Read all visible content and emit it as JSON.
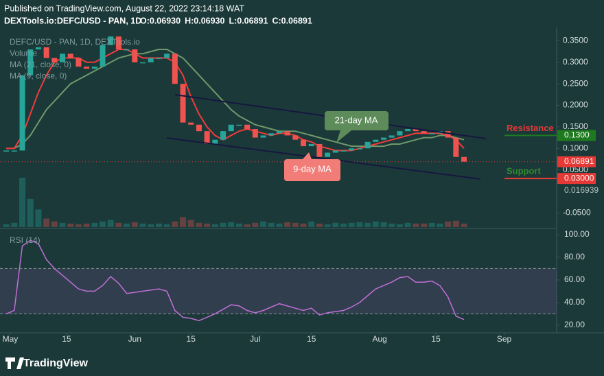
{
  "header": {
    "published": "Published on TradingView.com, August 22, 2022 23:14:18 WAT",
    "symbol": "DEXTools.io:DEFC/USD - PAN, 1D",
    "ohlc": [
      "O:0.06930",
      "H:0.06930",
      "L:0.06891",
      "C:0.06891"
    ]
  },
  "footer": {
    "brand": "TradingView"
  },
  "chart_data": [
    {
      "type": "candlestick",
      "x": [
        -1,
        1,
        3,
        5,
        7,
        9,
        11,
        13,
        15,
        17,
        19,
        21,
        23,
        25,
        27,
        29,
        31,
        33,
        35,
        37,
        39,
        41,
        43,
        45,
        47,
        49,
        51,
        53,
        55,
        57,
        59,
        61,
        63,
        65,
        67,
        69,
        71,
        73,
        75,
        77,
        79,
        81,
        83,
        85,
        87,
        89,
        91,
        93,
        95,
        97,
        99,
        101,
        103,
        105,
        107,
        109,
        111,
        113
      ],
      "xlim": [
        -2.56,
        135.9
      ],
      "ylim": [
        -0.083,
        0.389
      ],
      "yticks": [
        {
          "value": 0.35,
          "label": "0.3500"
        },
        {
          "value": 0.3,
          "label": "0.3000"
        },
        {
          "value": 0.25,
          "label": "0.2500"
        },
        {
          "value": 0.2,
          "label": "0.2000"
        },
        {
          "value": 0.15,
          "label": "0.1500"
        },
        {
          "value": 0.1,
          "label": "0.1000"
        },
        {
          "value": 0.05,
          "label": "0.0500"
        },
        {
          "value": -0.05,
          "label": "-0.0500"
        }
      ],
      "up_color": "#26a69a",
      "down_color": "#ef5350",
      "series": [
        {
          "name": "DEFC/USD - PAN, 1D, DEXTools.io",
          "values": [
            0.095,
            0.095,
            0.27,
            0.33,
            0.335,
            0.31,
            0.3,
            0.32,
            0.31,
            0.29,
            0.285,
            0.29,
            0.34,
            0.36,
            0.33,
            0.33,
            0.3,
            0.3,
            0.31,
            0.31,
            0.32,
            0.25,
            0.16,
            0.155,
            0.14,
            0.11,
            0.12,
            0.14,
            0.155,
            0.155,
            0.145,
            0.125,
            0.13,
            0.135,
            0.14,
            0.13,
            0.12,
            0.105,
            0.11,
            0.08,
            0.09,
            0.095,
            0.095,
            0.1,
            0.1,
            0.115,
            0.12,
            0.125,
            0.13,
            0.14,
            0.145,
            0.14,
            0.135,
            0.135,
            0.14,
            0.125,
            0.08,
            0.069
          ]
        },
        {
          "name": "Volume",
          "values": [
            4,
            6,
            70,
            40,
            25,
            12,
            8,
            6,
            5,
            4,
            5,
            6,
            8,
            10,
            6,
            5,
            7,
            5,
            4,
            5,
            4,
            8,
            14,
            10,
            6,
            5,
            4,
            6,
            7,
            5,
            4,
            6,
            8,
            6,
            5,
            7,
            6,
            5,
            8,
            5,
            4,
            6,
            5,
            6,
            7,
            6,
            8,
            7,
            5,
            4,
            6,
            5,
            5,
            6,
            5,
            8,
            9,
            5
          ]
        },
        {
          "name": "MA (21, close, 0)",
          "color": "#6f9a6b",
          "values": [
            0.1,
            0.1,
            0.11,
            0.13,
            0.16,
            0.19,
            0.21,
            0.23,
            0.25,
            0.26,
            0.27,
            0.28,
            0.29,
            0.3,
            0.31,
            0.315,
            0.32,
            0.32,
            0.325,
            0.33,
            0.33,
            0.32,
            0.31,
            0.29,
            0.27,
            0.25,
            0.23,
            0.21,
            0.19,
            0.175,
            0.165,
            0.155,
            0.15,
            0.145,
            0.14,
            0.14,
            0.14,
            0.135,
            0.13,
            0.125,
            0.12,
            0.115,
            0.11,
            0.105,
            0.105,
            0.105,
            0.105,
            0.105,
            0.11,
            0.11,
            0.115,
            0.12,
            0.125,
            0.125,
            0.13,
            0.13,
            0.125,
            0.12
          ]
        },
        {
          "name": "MA (9, close, 0)",
          "color": "#f23b3b",
          "values": [
            0.1,
            0.1,
            0.13,
            0.18,
            0.23,
            0.27,
            0.3,
            0.31,
            0.31,
            0.31,
            0.3,
            0.3,
            0.31,
            0.32,
            0.33,
            0.33,
            0.32,
            0.31,
            0.31,
            0.31,
            0.31,
            0.3,
            0.27,
            0.22,
            0.18,
            0.15,
            0.13,
            0.12,
            0.13,
            0.14,
            0.145,
            0.14,
            0.135,
            0.13,
            0.135,
            0.135,
            0.13,
            0.12,
            0.115,
            0.105,
            0.1,
            0.095,
            0.095,
            0.095,
            0.1,
            0.105,
            0.11,
            0.115,
            0.12,
            0.125,
            0.13,
            0.135,
            0.135,
            0.135,
            0.135,
            0.13,
            0.12,
            0.1
          ]
        }
      ],
      "annotations": [
        {
          "text": "Resistance",
          "value": 0.13,
          "label": "0.1300",
          "text_color": "#e53935",
          "box_color": "#1e7a1e"
        },
        {
          "text": "Support",
          "value": 0.03,
          "label": "0.03000",
          "text_color": "#2e8b2e",
          "box_color": "#e53935"
        }
      ],
      "last_price": {
        "value": 0.06891,
        "label": "0.06891",
        "color": "#e53935"
      },
      "volume_label": "0.016939",
      "callouts": [
        {
          "text": "21-day MA",
          "color": "#5d8c5a"
        },
        {
          "text": "9-day MA",
          "color": "#f27c78"
        }
      ]
    },
    {
      "type": "line",
      "x": [
        -1,
        1,
        3,
        5,
        7,
        9,
        11,
        13,
        15,
        17,
        19,
        21,
        23,
        25,
        27,
        29,
        31,
        33,
        35,
        37,
        39,
        41,
        43,
        45,
        47,
        49,
        51,
        53,
        55,
        57,
        59,
        61,
        63,
        65,
        67,
        69,
        71,
        73,
        75,
        77,
        79,
        81,
        83,
        85,
        87,
        89,
        91,
        93,
        95,
        97,
        99,
        101,
        103,
        105,
        107,
        109,
        111,
        113
      ],
      "xlim": [
        -2.56,
        135.9
      ],
      "ylim": [
        13.9,
        104.2
      ],
      "yticks": [
        {
          "value": 100,
          "label": "100.00"
        },
        {
          "value": 80,
          "label": "80.00"
        },
        {
          "value": 60,
          "label": "60.00"
        },
        {
          "value": 40,
          "label": "40.00"
        },
        {
          "value": 20,
          "label": "20.00"
        }
      ],
      "xticks": [
        {
          "value": 0,
          "label": "May"
        },
        {
          "value": 14,
          "label": "15"
        },
        {
          "value": 31,
          "label": "Jun"
        },
        {
          "value": 45,
          "label": "15"
        },
        {
          "value": 61,
          "label": "Jul"
        },
        {
          "value": 75,
          "label": "15"
        },
        {
          "value": 92,
          "label": "Aug"
        },
        {
          "value": 106,
          "label": "15"
        },
        {
          "value": 123,
          "label": "Sep"
        }
      ],
      "bands": [
        30,
        70
      ],
      "series": [
        {
          "name": "RSI (14)",
          "color": "#c06fd6",
          "values": [
            30,
            33,
            90,
            95,
            92,
            78,
            70,
            64,
            58,
            52,
            50,
            50,
            55,
            63,
            57,
            48,
            49,
            50,
            51,
            52,
            50,
            33,
            27,
            26,
            24,
            27,
            30,
            34,
            38,
            37,
            33,
            31,
            33,
            36,
            39,
            37,
            35,
            33,
            35,
            29,
            31,
            32,
            33,
            36,
            40,
            46,
            52,
            55,
            58,
            62,
            63,
            58,
            58,
            59,
            55,
            45,
            28,
            25
          ]
        }
      ]
    }
  ]
}
